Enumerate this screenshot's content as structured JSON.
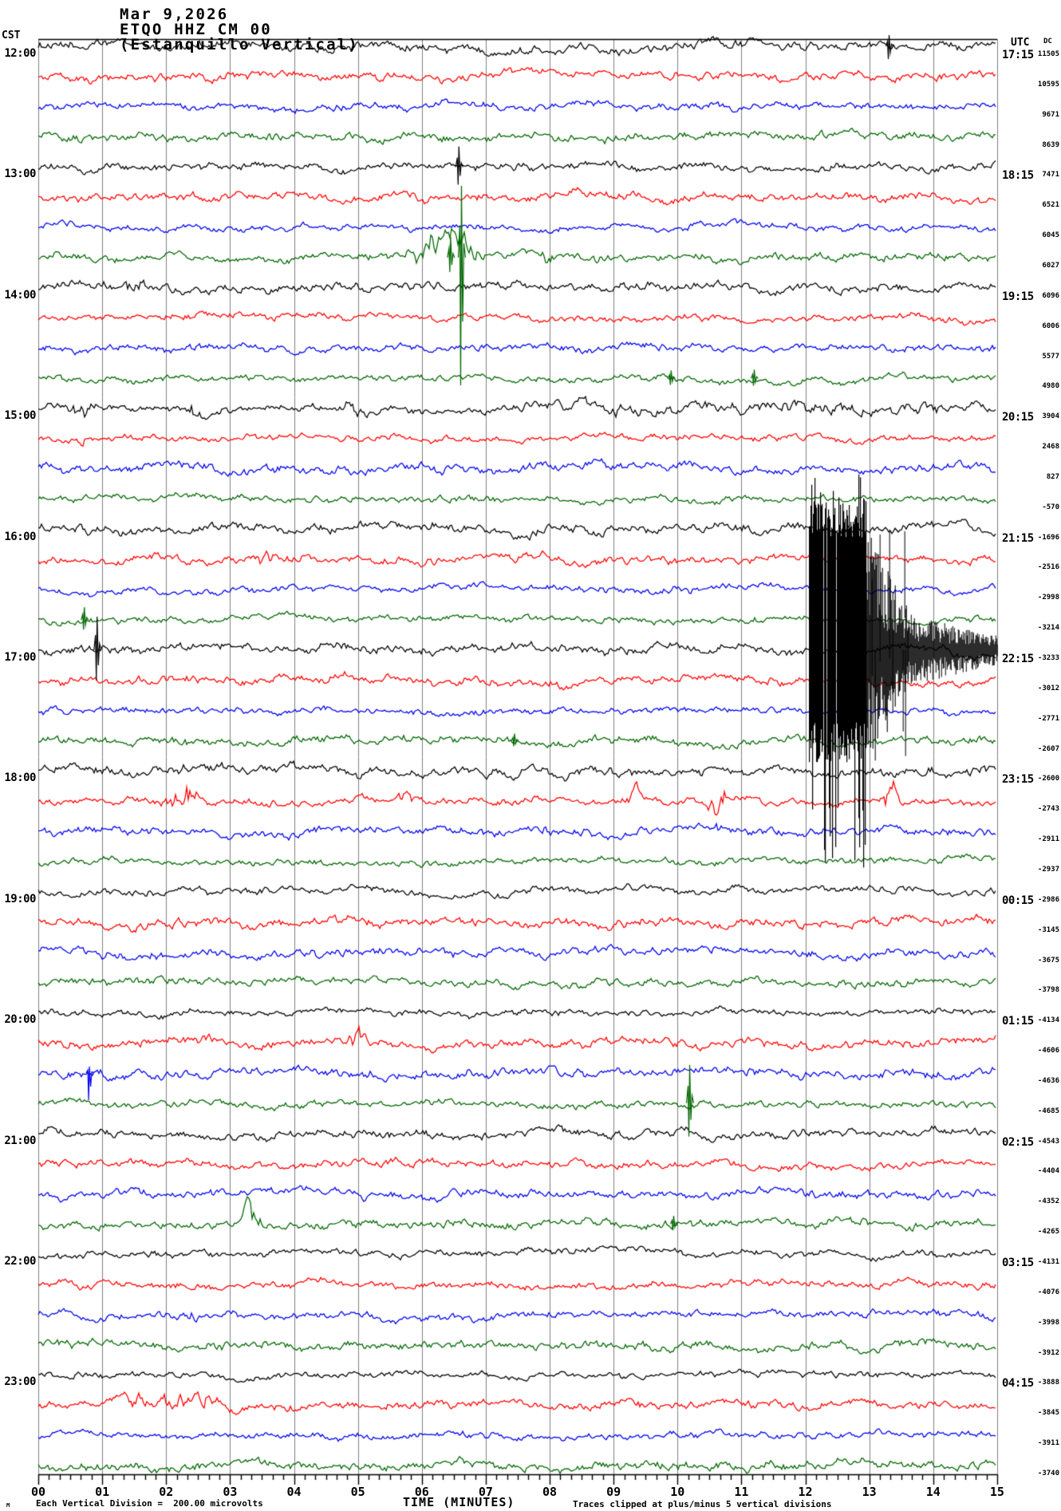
{
  "chart_data": {
    "type": "line",
    "subtype": "seismogram_helicorder",
    "station": {
      "date": "Mar 9,2026",
      "id": "ETQO HHZ CM 00",
      "name": "(Estanquillo Vertical)"
    },
    "left_axis": {
      "label": "CST",
      "hours": [
        "12:00",
        "13:00",
        "14:00",
        "15:00",
        "16:00",
        "17:00",
        "18:00",
        "19:00",
        "20:00",
        "21:00",
        "22:00",
        "23:00"
      ]
    },
    "right_axis": {
      "label": "UTC",
      "hours": [
        "17:15",
        "18:15",
        "19:15",
        "20:15",
        "21:15",
        "22:15",
        "23:15",
        "00:15",
        "01:15",
        "02:15",
        "03:15",
        "04:15"
      ],
      "dc_label": "DC",
      "dc_values": [
        11505,
        10595,
        9671,
        8639,
        7471,
        6521,
        6045,
        6027,
        6096,
        6006,
        5577,
        4980,
        3904,
        2468,
        827,
        -570,
        -1696,
        -2516,
        -2998,
        -3214,
        -3233,
        -3012,
        -2771,
        -2607,
        -2600,
        -2743,
        -2911,
        -2937,
        -2986,
        -3145,
        -3675,
        -3798,
        -4134,
        -4606,
        -4636,
        -4685,
        -4543,
        -4404,
        -4352,
        -4265,
        -4131,
        -4076,
        -3998,
        -3912,
        -3888,
        -3845,
        -3911,
        -3740
      ]
    },
    "x_axis": {
      "title": "TIME (MINUTES)",
      "min": 0,
      "max": 15,
      "tick_labels": [
        "00",
        "01",
        "02",
        "03",
        "04",
        "05",
        "06",
        "07",
        "08",
        "09",
        "10",
        "11",
        "12",
        "13",
        "14",
        "15"
      ],
      "minor_ticks_per_interval": 5
    },
    "traces_per_hour": 4,
    "trace_count": 48,
    "trace_colors": [
      "#000000",
      "#ff0000",
      "#0000ee",
      "#006600"
    ],
    "grid_color": "#808080",
    "clip_divisions": 5,
    "notes": {
      "scale": "Each Vertical Division =  200.00 microvolts",
      "clip": "Traces clipped at plus/minus 5 vertical divisions",
      "corner_mark": "M"
    },
    "events": [
      {
        "row": 0,
        "type": "spike",
        "t": 13.31,
        "up": 14,
        "down": 16
      },
      {
        "row": 4,
        "type": "spike",
        "t": 6.58,
        "up": 26,
        "down": 22
      },
      {
        "row": 7,
        "type": "burst",
        "t0": 5.55,
        "t1": 7.15,
        "amp": 14
      },
      {
        "row": 7,
        "type": "spike",
        "t": 6.45,
        "up": 26,
        "down": 18
      },
      {
        "row": 7,
        "type": "spike",
        "t": 6.62,
        "up": 90,
        "down": 160
      },
      {
        "row": 7,
        "type": "burst",
        "t0": 7.75,
        "t1": 8.15,
        "amp": 10
      },
      {
        "row": 8,
        "type": "burst",
        "t0": 1.25,
        "t1": 1.75,
        "amp": 8
      },
      {
        "row": 11,
        "type": "spike",
        "t": 9.9,
        "up": 10,
        "down": 8
      },
      {
        "row": 11,
        "type": "spike",
        "t": 11.2,
        "up": 11,
        "down": 9
      },
      {
        "row": 12,
        "type": "burst",
        "t0": 0.5,
        "t1": 0.9,
        "amp": 10
      },
      {
        "row": 12,
        "type": "burst",
        "t0": 2.3,
        "t1": 2.7,
        "amp": 11
      },
      {
        "row": 12,
        "type": "burst",
        "t0": 4.75,
        "t1": 5.2,
        "amp": 13
      },
      {
        "row": 12,
        "type": "elevated",
        "t0": 7.4,
        "t1": 15,
        "factor": 1.7
      },
      {
        "row": 13,
        "type": "burst",
        "t0": 0.55,
        "t1": 0.95,
        "amp": 8
      },
      {
        "row": 16,
        "type": "elevated",
        "t0": 0,
        "t1": 15,
        "factor": 1.25
      },
      {
        "row": 17,
        "type": "burst",
        "t0": 3.3,
        "t1": 3.75,
        "amp": 9
      },
      {
        "row": 19,
        "type": "spike",
        "t": 0.72,
        "up": 16,
        "down": 12
      },
      {
        "row": 20,
        "type": "spike",
        "t": 0.92,
        "up": 42,
        "down": 38
      },
      {
        "row": 20,
        "type": "clip_event",
        "t0": 12.05,
        "t_full": 12.95,
        "t_decay": 13.6,
        "t_end": 15,
        "clip_up": 180,
        "clip_down": 120,
        "coda_amp": 38
      },
      {
        "row": 23,
        "type": "spike",
        "t": 7.45,
        "up": 9,
        "down": 7
      },
      {
        "row": 24,
        "type": "elevated",
        "t0": 0,
        "t1": 15,
        "factor": 1.3
      },
      {
        "row": 25,
        "type": "burst",
        "t0": 1.95,
        "t1": 2.55,
        "amp": 16
      },
      {
        "row": 25,
        "type": "burst",
        "t0": 5.6,
        "t1": 5.9,
        "amp": 9
      },
      {
        "row": 25,
        "type": "burst",
        "t0": 9.15,
        "t1": 9.5,
        "amp": 13
      },
      {
        "row": 25,
        "type": "burst",
        "t0": 10.45,
        "t1": 10.8,
        "amp": 22
      },
      {
        "row": 25,
        "type": "burst",
        "t0": 13.15,
        "t1": 13.55,
        "amp": 18
      },
      {
        "row": 26,
        "type": "burst",
        "t0": 10.5,
        "t1": 10.8,
        "amp": 10
      },
      {
        "row": 33,
        "type": "burst",
        "t0": 4.8,
        "t1": 5.15,
        "amp": 13
      },
      {
        "row": 34,
        "type": "spike",
        "t": 0.8,
        "up": 8,
        "down": 34
      },
      {
        "row": 35,
        "type": "spike",
        "t": 10.19,
        "up": 48,
        "down": 42
      },
      {
        "row": 39,
        "type": "burst",
        "t0": 3.05,
        "t1": 3.6,
        "amp": 13
      },
      {
        "row": 39,
        "type": "spike",
        "t": 9.94,
        "up": 10,
        "down": 8
      },
      {
        "row": 42,
        "type": "burst",
        "t0": 2.25,
        "t1": 2.6,
        "amp": 9
      },
      {
        "row": 45,
        "type": "burst",
        "t0": 1.0,
        "t1": 3.4,
        "amp": 6
      }
    ]
  }
}
